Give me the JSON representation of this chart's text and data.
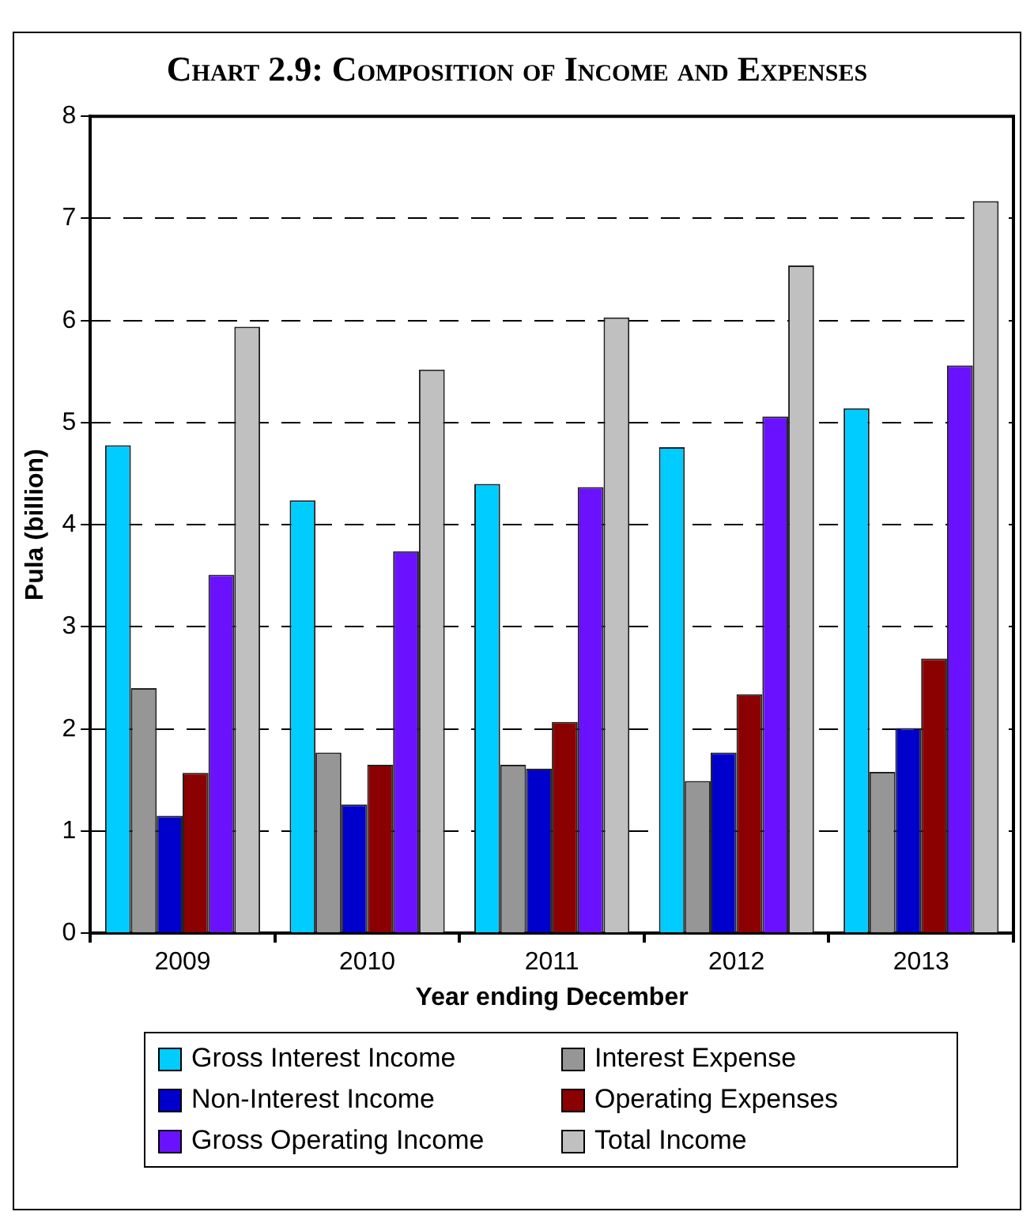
{
  "chart_data": {
    "type": "bar",
    "title": "Chart 2.9: Composition of Income and Expenses",
    "xlabel": "Year ending December",
    "ylabel": "Pula (billion)",
    "categories": [
      "2009",
      "2010",
      "2011",
      "2012",
      "2013"
    ],
    "series": [
      {
        "name": "Gross Interest Income",
        "color": "#00ccff",
        "values": [
          4.78,
          4.24,
          4.4,
          4.76,
          5.14
        ]
      },
      {
        "name": "Interest Expense",
        "color": "#969696",
        "values": [
          2.4,
          1.77,
          1.65,
          1.49,
          1.58
        ]
      },
      {
        "name": "Non-Interest Income",
        "color": "#0000cc",
        "values": [
          1.15,
          1.26,
          1.61,
          1.77,
          2.01
        ]
      },
      {
        "name": "Operating Expenses",
        "color": "#8b0000",
        "values": [
          1.57,
          1.65,
          2.07,
          2.34,
          2.69
        ]
      },
      {
        "name": "Gross Operating Income",
        "color": "#6a11ff",
        "values": [
          3.51,
          3.74,
          4.37,
          5.06,
          5.56
        ]
      },
      {
        "name": "Total Income",
        "color": "#c0c0c0",
        "values": [
          5.94,
          5.52,
          6.03,
          6.54,
          7.17
        ]
      }
    ],
    "ylim": [
      0,
      8
    ],
    "yticks": [
      0,
      1,
      2,
      3,
      4,
      5,
      6,
      7,
      8
    ],
    "grid": "y",
    "legend": "bottom"
  }
}
